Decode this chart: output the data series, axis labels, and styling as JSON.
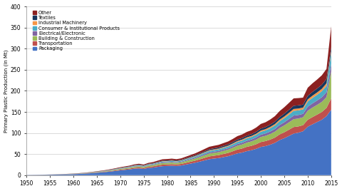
{
  "years": [
    1950,
    1951,
    1952,
    1953,
    1954,
    1955,
    1956,
    1957,
    1958,
    1959,
    1960,
    1961,
    1962,
    1963,
    1964,
    1965,
    1966,
    1967,
    1968,
    1969,
    1970,
    1971,
    1972,
    1973,
    1974,
    1975,
    1976,
    1977,
    1978,
    1979,
    1980,
    1981,
    1982,
    1983,
    1984,
    1985,
    1986,
    1987,
    1988,
    1989,
    1990,
    1991,
    1992,
    1993,
    1994,
    1995,
    1996,
    1997,
    1998,
    1999,
    2000,
    2001,
    2002,
    2003,
    2004,
    2005,
    2006,
    2007,
    2008,
    2009,
    2010,
    2011,
    2012,
    2013,
    2014,
    2015
  ],
  "packaging": [
    0.4,
    0.5,
    0.6,
    0.7,
    0.9,
    1.1,
    1.3,
    1.5,
    1.8,
    2.1,
    2.5,
    2.9,
    3.5,
    4.1,
    4.9,
    5.8,
    6.7,
    7.6,
    8.8,
    10.1,
    11.5,
    12.6,
    13.7,
    15.3,
    15.9,
    14.8,
    17.0,
    18.1,
    19.8,
    21.4,
    21.9,
    22.5,
    21.9,
    23.0,
    25.2,
    27.4,
    29.6,
    32.3,
    35.1,
    37.9,
    39.4,
    40.6,
    42.8,
    45.0,
    48.3,
    51.6,
    53.7,
    57.0,
    59.2,
    62.5,
    67.0,
    69.0,
    72.3,
    76.7,
    83.3,
    87.7,
    93.1,
    98.6,
    100.8,
    104.2,
    115.0,
    120.5,
    126.0,
    131.5,
    140.0,
    155.0
  ],
  "transportation": [
    0.05,
    0.06,
    0.07,
    0.08,
    0.1,
    0.12,
    0.15,
    0.18,
    0.22,
    0.26,
    0.32,
    0.38,
    0.45,
    0.54,
    0.64,
    0.77,
    0.9,
    1.04,
    1.22,
    1.41,
    1.62,
    1.8,
    2.0,
    2.3,
    2.5,
    2.3,
    2.7,
    2.9,
    3.3,
    3.6,
    3.6,
    3.7,
    3.5,
    3.7,
    4.1,
    4.5,
    4.9,
    5.4,
    6.0,
    6.6,
    6.8,
    7.0,
    7.4,
    7.7,
    8.4,
    9.2,
    9.6,
    10.2,
    10.5,
    10.9,
    11.6,
    11.9,
    12.1,
    12.5,
    13.4,
    14.0,
    14.8,
    15.6,
    14.8,
    14.4,
    16.4,
    17.2,
    17.6,
    18.3,
    19.5,
    27.0
  ],
  "building": [
    0.05,
    0.06,
    0.07,
    0.09,
    0.11,
    0.13,
    0.16,
    0.19,
    0.23,
    0.28,
    0.34,
    0.4,
    0.49,
    0.58,
    0.7,
    0.83,
    0.97,
    1.13,
    1.32,
    1.53,
    1.76,
    1.94,
    2.11,
    2.45,
    2.63,
    2.46,
    2.83,
    3.01,
    3.38,
    3.74,
    3.74,
    3.8,
    3.65,
    3.82,
    4.21,
    4.59,
    4.97,
    5.5,
    6.03,
    6.55,
    6.74,
    6.95,
    7.36,
    7.75,
    8.32,
    9.06,
    9.45,
    10.0,
    10.4,
    11.1,
    12.0,
    12.4,
    13.2,
    14.0,
    15.2,
    16.3,
    17.4,
    18.6,
    18.7,
    18.7,
    21.5,
    22.5,
    23.0,
    24.0,
    25.5,
    64.0
  ],
  "electrical": [
    0.02,
    0.02,
    0.03,
    0.04,
    0.04,
    0.05,
    0.06,
    0.08,
    0.09,
    0.11,
    0.13,
    0.16,
    0.19,
    0.22,
    0.27,
    0.32,
    0.38,
    0.44,
    0.51,
    0.59,
    0.68,
    0.76,
    0.84,
    0.97,
    1.05,
    0.98,
    1.14,
    1.22,
    1.37,
    1.55,
    1.57,
    1.6,
    1.54,
    1.62,
    1.79,
    1.97,
    2.15,
    2.38,
    2.61,
    2.84,
    2.93,
    3.03,
    3.22,
    3.38,
    3.63,
    3.97,
    4.16,
    4.43,
    4.62,
    4.96,
    5.41,
    5.63,
    6.01,
    6.42,
    6.99,
    7.52,
    8.05,
    8.6,
    8.47,
    8.12,
    9.48,
    9.99,
    10.5,
    11.0,
    11.7,
    18.0
  ],
  "consumer": [
    0.03,
    0.03,
    0.04,
    0.05,
    0.06,
    0.07,
    0.09,
    0.1,
    0.12,
    0.15,
    0.18,
    0.21,
    0.25,
    0.3,
    0.36,
    0.43,
    0.5,
    0.58,
    0.68,
    0.79,
    0.9,
    1.0,
    1.09,
    1.27,
    1.38,
    1.28,
    1.49,
    1.59,
    1.79,
    2.01,
    2.04,
    2.08,
    2.0,
    2.1,
    2.32,
    2.55,
    2.78,
    3.08,
    3.38,
    3.68,
    3.79,
    3.92,
    4.16,
    4.37,
    4.7,
    5.13,
    5.37,
    5.72,
    5.97,
    6.4,
    6.99,
    7.28,
    7.77,
    8.3,
    9.04,
    9.73,
    10.4,
    11.1,
    10.9,
    10.5,
    12.3,
    13.0,
    13.6,
    14.2,
    15.1,
    26.0
  ],
  "industrial": [
    0.01,
    0.01,
    0.02,
    0.02,
    0.02,
    0.03,
    0.03,
    0.04,
    0.05,
    0.06,
    0.07,
    0.08,
    0.1,
    0.12,
    0.14,
    0.17,
    0.2,
    0.23,
    0.27,
    0.32,
    0.36,
    0.4,
    0.44,
    0.51,
    0.55,
    0.52,
    0.6,
    0.64,
    0.72,
    0.81,
    0.82,
    0.84,
    0.8,
    0.84,
    0.93,
    1.02,
    1.11,
    1.23,
    1.35,
    1.47,
    1.51,
    1.56,
    1.66,
    1.74,
    1.87,
    2.04,
    2.14,
    2.28,
    2.38,
    2.56,
    2.79,
    2.91,
    3.1,
    3.32,
    3.62,
    3.9,
    4.18,
    4.47,
    4.4,
    4.22,
    4.94,
    5.22,
    5.46,
    5.71,
    6.08,
    4.0
  ],
  "textiles": [
    0.02,
    0.02,
    0.03,
    0.03,
    0.04,
    0.05,
    0.06,
    0.07,
    0.08,
    0.1,
    0.12,
    0.14,
    0.17,
    0.2,
    0.24,
    0.29,
    0.34,
    0.39,
    0.46,
    0.53,
    0.61,
    0.68,
    0.74,
    0.85,
    0.93,
    0.87,
    1.01,
    1.08,
    1.21,
    1.37,
    1.39,
    1.42,
    1.37,
    1.44,
    1.59,
    1.74,
    1.89,
    2.09,
    2.3,
    2.51,
    2.58,
    2.67,
    2.83,
    2.98,
    3.2,
    3.5,
    3.66,
    3.9,
    4.07,
    4.37,
    4.76,
    4.96,
    5.3,
    5.66,
    6.17,
    6.64,
    7.12,
    7.61,
    7.5,
    7.19,
    8.41,
    8.88,
    9.29,
    9.72,
    10.3,
    9.0
  ],
  "other": [
    0.05,
    0.06,
    0.07,
    0.08,
    0.1,
    0.12,
    0.14,
    0.17,
    0.2,
    0.24,
    0.29,
    0.34,
    0.41,
    0.49,
    0.58,
    0.69,
    0.8,
    0.93,
    1.09,
    1.25,
    1.44,
    1.6,
    1.74,
    2.0,
    2.19,
    2.04,
    2.37,
    2.52,
    2.84,
    3.21,
    3.24,
    3.3,
    3.18,
    3.34,
    3.69,
    4.03,
    4.38,
    4.85,
    5.32,
    5.79,
    5.97,
    6.17,
    6.55,
    6.9,
    7.41,
    8.09,
    8.47,
    9.02,
    9.41,
    10.1,
    11.0,
    11.4,
    12.2,
    13.1,
    14.2,
    15.3,
    16.4,
    17.5,
    17.2,
    16.5,
    19.3,
    20.4,
    21.3,
    22.3,
    23.7,
    50.0
  ],
  "colors": {
    "packaging": "#4472C4",
    "transportation": "#C0504D",
    "building": "#9BBB59",
    "electrical": "#8064A2",
    "consumer": "#4BACC6",
    "industrial": "#F79646",
    "textiles": "#17375E",
    "other": "#8B2020"
  },
  "labels": {
    "packaging": "Packaging",
    "transportation": "Transportation",
    "building": "Building & Construction",
    "electrical": "Electrical/Electronic",
    "consumer": "Consumer & Institutional Products",
    "industrial": "Industrial Machinery",
    "textiles": "Textiles",
    "other": "Other"
  },
  "ylabel": "Primary Plastic Production (in Mt)",
  "ylim": [
    0,
    400
  ],
  "yticks": [
    0,
    50,
    100,
    150,
    200,
    250,
    300,
    350,
    400
  ],
  "xlim": [
    1950,
    2015
  ],
  "xticks": [
    1950,
    1955,
    1960,
    1965,
    1970,
    1975,
    1980,
    1985,
    1990,
    1995,
    2000,
    2005,
    2010,
    2015
  ],
  "bg_color": "#FFFFFF",
  "grid_color": "#CCCCCC"
}
